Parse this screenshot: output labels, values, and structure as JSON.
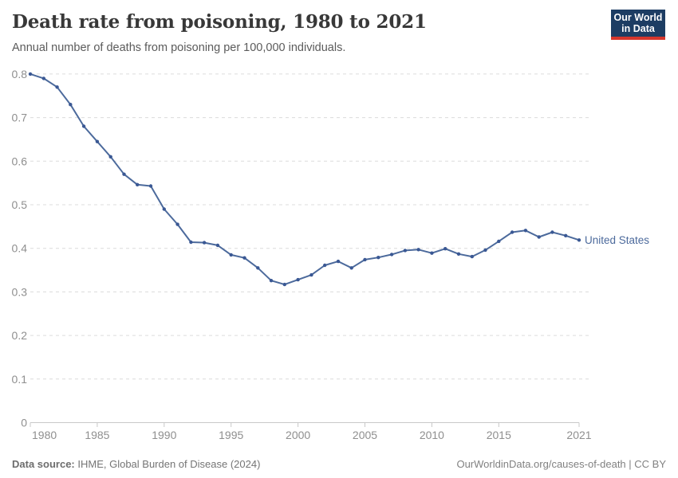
{
  "header": {
    "title": "Death rate from poisoning, 1980 to 2021",
    "subtitle": "Annual number of deaths from poisoning per 100,000 individuals.",
    "logo": {
      "line1": "Our World",
      "line2": "in Data",
      "bg_color": "#1d3d63",
      "accent_color": "#d7362c"
    }
  },
  "chart_data": {
    "type": "line",
    "title": "Death rate from poisoning, 1980 to 2021",
    "xlabel": "",
    "ylabel": "Annual number of deaths from poisoning per 100,000 individuals",
    "xlim": [
      1980,
      2021
    ],
    "ylim": [
      0,
      0.8
    ],
    "grid": true,
    "legend_position": "end-of-line",
    "x_ticks": [
      1980,
      1985,
      1990,
      1995,
      2000,
      2005,
      2010,
      2015,
      2021
    ],
    "y_ticks": [
      0,
      0.1,
      0.2,
      0.3,
      0.4,
      0.5,
      0.6,
      0.7,
      0.8
    ],
    "x": [
      1980,
      1981,
      1982,
      1983,
      1984,
      1985,
      1986,
      1987,
      1988,
      1989,
      1990,
      1991,
      1992,
      1993,
      1994,
      1995,
      1996,
      1997,
      1998,
      1999,
      2000,
      2001,
      2002,
      2003,
      2004,
      2005,
      2006,
      2007,
      2008,
      2009,
      2010,
      2011,
      2012,
      2013,
      2014,
      2015,
      2016,
      2017,
      2018,
      2019,
      2020,
      2021
    ],
    "series": [
      {
        "name": "United States",
        "color": "#4c6a9c",
        "marker_color": "#3a5894",
        "values": [
          0.8,
          0.79,
          0.77,
          0.73,
          0.68,
          0.645,
          0.61,
          0.57,
          0.546,
          0.543,
          0.49,
          0.455,
          0.414,
          0.413,
          0.407,
          0.385,
          0.378,
          0.355,
          0.326,
          0.317,
          0.328,
          0.339,
          0.361,
          0.37,
          0.355,
          0.374,
          0.379,
          0.386,
          0.395,
          0.397,
          0.389,
          0.399,
          0.387,
          0.381,
          0.396,
          0.416,
          0.437,
          0.441,
          0.426,
          0.437,
          0.429,
          0.419
        ]
      }
    ],
    "style": {
      "gridline_color": "#dcdcdc",
      "axis_color": "#c8c8c8",
      "tick_label_color": "#8f8f8f"
    }
  },
  "footer": {
    "source_label": "Data source:",
    "source_text": " IHME, Global Burden of Disease (2024)",
    "credit": "OurWorldinData.org/causes-of-death | CC BY"
  }
}
